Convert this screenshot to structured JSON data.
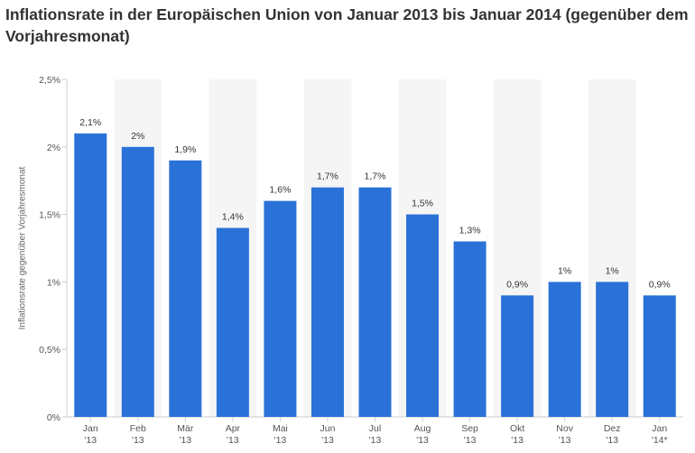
{
  "title": "Inflationsrate in der Europäischen Union von Januar 2013 bis Januar 2014 (gegenüber dem Vorjahresmonat)",
  "colors": {
    "bar": "#2a72d8",
    "band": "#f5f5f5",
    "axis": "#cccccc"
  },
  "chart_data": {
    "type": "bar",
    "title": "Inflationsrate in der Europäischen Union von Januar 2013 bis Januar 2014 (gegenüber dem Vorjahresmonat)",
    "xlabel": "",
    "ylabel": "Inflationsrate gegenüber Vorjahresmonat",
    "ylim": [
      0,
      2.5
    ],
    "yticks": [
      0,
      0.5,
      1,
      1.5,
      2,
      2.5
    ],
    "ytick_labels": [
      "0%",
      "0,5%",
      "1%",
      "1,5%",
      "2%",
      "2,5%"
    ],
    "categories": [
      [
        "Jan",
        "'13"
      ],
      [
        "Feb",
        "'13"
      ],
      [
        "Mär",
        "'13"
      ],
      [
        "Apr",
        "'13"
      ],
      [
        "Mai",
        "'13"
      ],
      [
        "Jun",
        "'13"
      ],
      [
        "Jul",
        "'13"
      ],
      [
        "Aug",
        "'13"
      ],
      [
        "Sep",
        "'13"
      ],
      [
        "Okt",
        "'13"
      ],
      [
        "Nov",
        "'13"
      ],
      [
        "Dez",
        "'13"
      ],
      [
        "Jan",
        "'14*"
      ]
    ],
    "values": [
      2.1,
      2.0,
      1.9,
      1.4,
      1.6,
      1.7,
      1.7,
      1.5,
      1.3,
      0.9,
      1.0,
      1.0,
      0.9
    ],
    "data_labels": [
      "2,1%",
      "2%",
      "1,9%",
      "1,4%",
      "1,6%",
      "1,7%",
      "1,7%",
      "1,5%",
      "1,3%",
      "0,9%",
      "1%",
      "1%",
      "0,9%"
    ],
    "grid": false,
    "legend": "none"
  }
}
